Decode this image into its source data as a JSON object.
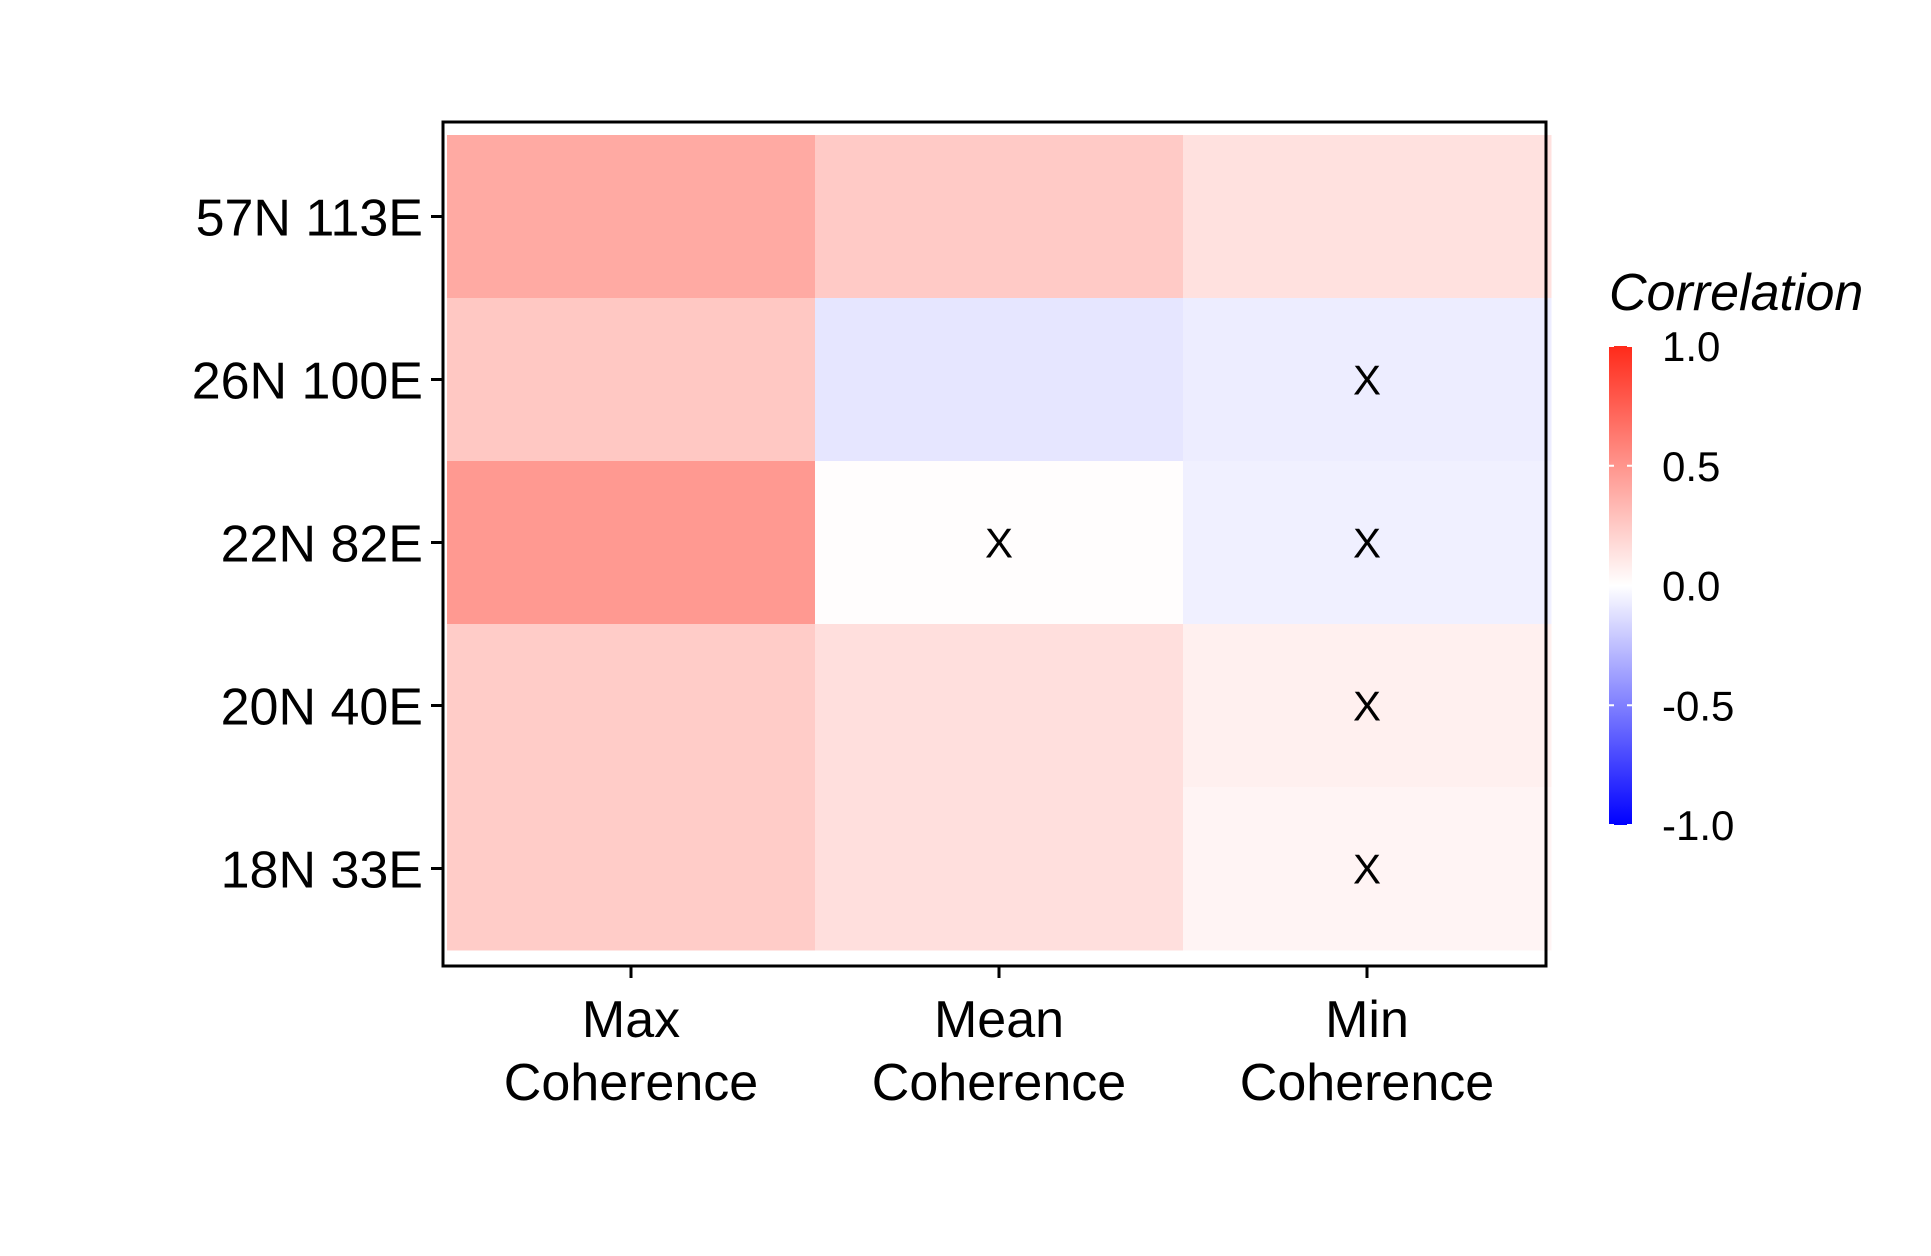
{
  "chart_data": {
    "type": "heatmap",
    "title": "",
    "xlabel": "",
    "ylabel": "",
    "x_categories": [
      [
        "Max",
        "Coherence"
      ],
      [
        "Mean",
        "Coherence"
      ],
      [
        "Min",
        "Coherence"
      ]
    ],
    "y_categories": [
      "57N 113E",
      "26N 100E",
      "22N 82E",
      "20N 40E",
      "18N 33E"
    ],
    "values": [
      [
        0.4,
        0.25,
        0.14
      ],
      [
        0.26,
        -0.1,
        -0.07
      ],
      [
        0.48,
        0.01,
        -0.06
      ],
      [
        0.24,
        0.15,
        0.07
      ],
      [
        0.24,
        0.15,
        0.05
      ]
    ],
    "not_significant_marker": "X",
    "not_significant": [
      [
        false,
        false,
        false
      ],
      [
        false,
        false,
        true
      ],
      [
        false,
        true,
        true
      ],
      [
        false,
        false,
        true
      ],
      [
        false,
        false,
        true
      ]
    ],
    "legend": {
      "title": "Correlation",
      "position": "right",
      "ticks": [
        "1.0",
        "0.5",
        "0.0",
        "-0.5",
        "-1.0"
      ],
      "range": [
        -1,
        1
      ],
      "low_color": "#0000ff",
      "mid_color": "#ffffff",
      "high_color": "#ff2a1a"
    },
    "grid": false
  }
}
